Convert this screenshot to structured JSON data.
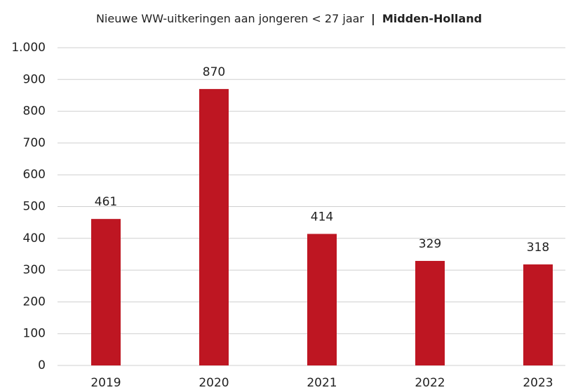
{
  "chart_data": {
    "type": "bar",
    "title": "Nieuwe WW-uitkeringen aan jongeren < 27 jaar",
    "separator": "|",
    "subtitle": "Midden-Holland",
    "categories": [
      "2019",
      "2020",
      "2021",
      "2022",
      "2023"
    ],
    "values": [
      461,
      870,
      414,
      329,
      318
    ],
    "color": "#be1622",
    "ylim": [
      0,
      1000
    ],
    "yticks": [
      0,
      100,
      200,
      300,
      400,
      500,
      600,
      700,
      800,
      900,
      {
        "value": 1000,
        "label": "1.000"
      }
    ],
    "grid": true
  }
}
